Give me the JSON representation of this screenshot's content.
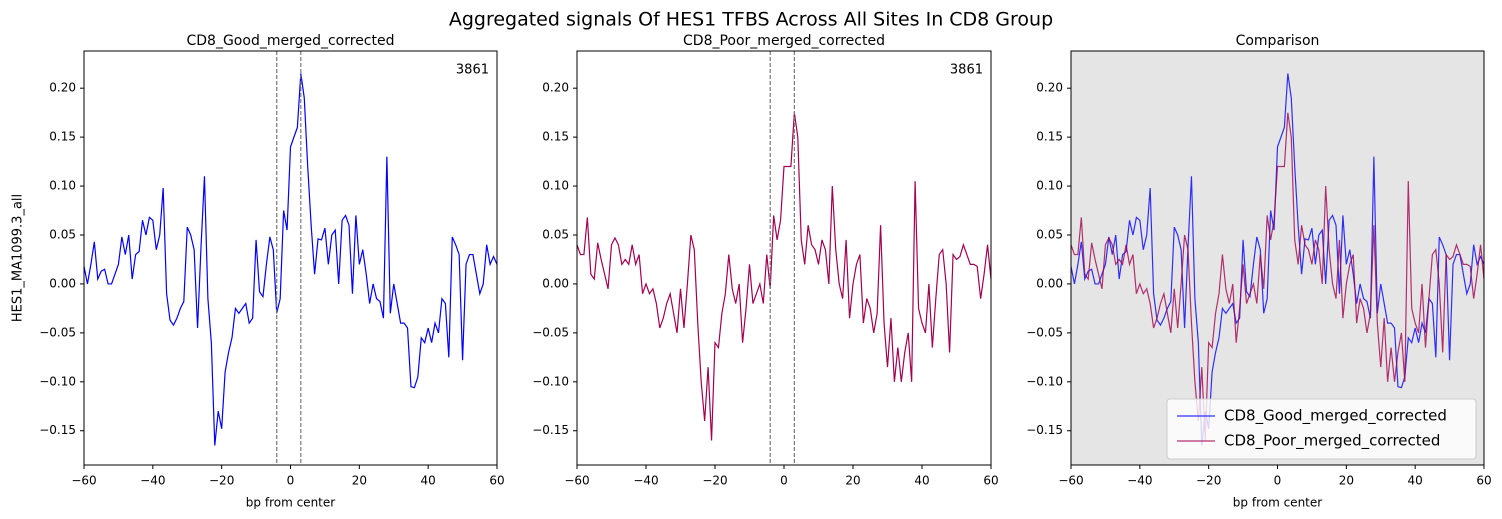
{
  "title": "Aggregated signals Of HES1 TFBS Across All Sites In CD8 Group",
  "chart_data": [
    {
      "type": "line",
      "title": "CD8_Good_merged_corrected",
      "xlabel": "bp from center",
      "ylabel": "HES1_MA1099.3_all",
      "annotation": "3861",
      "x": [
        -60,
        -59,
        -58,
        -57,
        -56,
        -55,
        -54,
        -53,
        -52,
        -51,
        -50,
        -49,
        -48,
        -47,
        -46,
        -45,
        -44,
        -43,
        -42,
        -41,
        -40,
        -39,
        -38,
        -37,
        -36,
        -35,
        -34,
        -33,
        -32,
        -31,
        -30,
        -29,
        -28,
        -27,
        -26,
        -25,
        -24,
        -23,
        -22,
        -21,
        -20,
        -19,
        -18,
        -17,
        -16,
        -15,
        -14,
        -13,
        -12,
        -11,
        -10,
        -9,
        -8,
        -7,
        -6,
        -5,
        -4,
        -3,
        -2,
        -1,
        0,
        1,
        2,
        3,
        4,
        5,
        6,
        7,
        8,
        9,
        10,
        11,
        12,
        13,
        14,
        15,
        16,
        17,
        18,
        19,
        20,
        21,
        22,
        23,
        24,
        25,
        26,
        27,
        28,
        29,
        30,
        31,
        32,
        33,
        34,
        35,
        36,
        37,
        38,
        39,
        40,
        41,
        42,
        43,
        44,
        45,
        46,
        47,
        48,
        49,
        50,
        51,
        52,
        53,
        54,
        55,
        56,
        57,
        58,
        59,
        60
      ],
      "series": [
        {
          "color": "#0000ff",
          "values": [
            0.018,
            0.0,
            0.02,
            0.043,
            0.005,
            0.013,
            0.015,
            0.0,
            0.0,
            0.01,
            0.02,
            0.048,
            0.03,
            0.05,
            0.005,
            0.03,
            0.033,
            0.065,
            0.05,
            0.068,
            0.065,
            0.035,
            0.05,
            0.098,
            -0.01,
            -0.037,
            -0.042,
            -0.035,
            -0.025,
            -0.018,
            0.058,
            0.05,
            0.035,
            -0.045,
            0.038,
            0.11,
            -0.015,
            -0.06,
            -0.165,
            -0.13,
            -0.148,
            -0.09,
            -0.07,
            -0.055,
            -0.025,
            -0.03,
            -0.025,
            -0.02,
            -0.04,
            -0.035,
            0.045,
            -0.008,
            -0.013,
            0.02,
            0.048,
            0.035,
            -0.03,
            -0.015,
            0.075,
            0.055,
            0.14,
            0.15,
            0.16,
            0.215,
            0.19,
            0.12,
            0.06,
            0.01,
            0.046,
            0.045,
            0.057,
            0.02,
            0.05,
            0.055,
            0.0,
            0.065,
            0.07,
            0.06,
            -0.01,
            0.07,
            0.02,
            0.035,
            0.01,
            -0.02,
            0.0,
            -0.015,
            -0.018,
            -0.035,
            0.13,
            -0.03,
            0.0,
            -0.02,
            -0.04,
            -0.04,
            -0.045,
            -0.105,
            -0.106,
            -0.095,
            -0.055,
            -0.06,
            -0.045,
            -0.06,
            -0.04,
            -0.05,
            -0.015,
            -0.02,
            -0.075,
            0.048,
            0.04,
            0.03,
            -0.078,
            0.02,
            0.03,
            0.03,
            0.01,
            -0.01,
            0.0,
            0.04,
            0.02,
            0.028,
            0.02
          ]
        }
      ],
      "vlines": [
        -4,
        3
      ],
      "xlim": [
        -60,
        60
      ],
      "xticks": [
        {
          "value": -60,
          "label": "−60"
        },
        {
          "value": -40,
          "label": "−40"
        },
        {
          "value": -20,
          "label": "−20"
        },
        0,
        20,
        40,
        60
      ],
      "ylim": [
        -0.185,
        0.238
      ],
      "yticks": [
        {
          "value": -0.15,
          "label": "−0.15"
        },
        {
          "value": -0.1,
          "label": "−0.10"
        },
        {
          "value": -0.05,
          "label": "−0.05"
        },
        {
          "value": 0,
          "label": "0.00"
        },
        {
          "value": 0.05,
          "label": "0.05"
        },
        {
          "value": 0.1,
          "label": "0.10"
        },
        {
          "value": 0.15,
          "label": "0.15"
        },
        {
          "value": 0.2,
          "label": "0.20"
        }
      ]
    },
    {
      "type": "line",
      "title": "CD8_Poor_merged_corrected",
      "annotation": "3861",
      "x": [
        -60,
        -59,
        -58,
        -57,
        -56,
        -55,
        -54,
        -53,
        -52,
        -51,
        -50,
        -49,
        -48,
        -47,
        -46,
        -45,
        -44,
        -43,
        -42,
        -41,
        -40,
        -39,
        -38,
        -37,
        -36,
        -35,
        -34,
        -33,
        -32,
        -31,
        -30,
        -29,
        -28,
        -27,
        -26,
        -25,
        -24,
        -23,
        -22,
        -21,
        -20,
        -19,
        -18,
        -17,
        -16,
        -15,
        -14,
        -13,
        -12,
        -11,
        -10,
        -9,
        -8,
        -7,
        -6,
        -5,
        -4,
        -3,
        -2,
        -1,
        0,
        1,
        2,
        3,
        4,
        5,
        6,
        7,
        8,
        9,
        10,
        11,
        12,
        13,
        14,
        15,
        16,
        17,
        18,
        19,
        20,
        21,
        22,
        23,
        24,
        25,
        26,
        27,
        28,
        29,
        30,
        31,
        32,
        33,
        34,
        35,
        36,
        37,
        38,
        39,
        40,
        41,
        42,
        43,
        44,
        45,
        46,
        47,
        48,
        49,
        50,
        51,
        52,
        53,
        54,
        55,
        56,
        57,
        58,
        59,
        60
      ],
      "series": [
        {
          "color": "#a3004f",
          "values": [
            0.04,
            0.03,
            0.03,
            0.068,
            0.01,
            0.005,
            0.042,
            0.025,
            0.01,
            -0.005,
            0.04,
            0.047,
            0.04,
            0.02,
            0.025,
            0.02,
            0.04,
            0.02,
            0.03,
            -0.01,
            0.0,
            -0.01,
            -0.005,
            -0.02,
            -0.045,
            -0.035,
            -0.02,
            -0.01,
            -0.03,
            -0.05,
            -0.005,
            -0.045,
            0.0,
            0.05,
            0.035,
            -0.04,
            -0.1,
            -0.14,
            -0.085,
            -0.16,
            -0.06,
            -0.065,
            -0.03,
            -0.01,
            0.03,
            -0.005,
            -0.02,
            0.0,
            -0.06,
            -0.025,
            0.02,
            -0.02,
            -0.01,
            0.0,
            -0.02,
            0.03,
            -0.005,
            0.07,
            0.045,
            0.065,
            0.12,
            0.12,
            0.12,
            0.175,
            0.15,
            0.045,
            0.02,
            0.06,
            0.04,
            0.035,
            0.02,
            0.045,
            0.035,
            0.0,
            0.1,
            0.035,
            0.0,
            -0.015,
            0.045,
            -0.035,
            0.0,
            0.02,
            0.03,
            -0.04,
            -0.015,
            -0.025,
            -0.05,
            -0.03,
            0.06,
            -0.04,
            -0.085,
            -0.035,
            -0.1,
            -0.065,
            -0.1,
            -0.07,
            -0.05,
            -0.1,
            0.105,
            -0.025,
            -0.04,
            -0.05,
            0.0,
            -0.065,
            -0.015,
            0.03,
            0.035,
            0.0,
            -0.07,
            0.03,
            0.025,
            0.028,
            0.04,
            0.03,
            0.02,
            0.02,
            0.018,
            -0.015,
            0.01,
            0.04,
            0.005
          ]
        }
      ],
      "vlines": [
        -4,
        3
      ],
      "xlim": [
        -60,
        60
      ],
      "xticks": [
        {
          "value": -60,
          "label": "−60"
        },
        {
          "value": -40,
          "label": "−40"
        },
        {
          "value": -20,
          "label": "−20"
        },
        0,
        20,
        40,
        60
      ],
      "ylim": [
        -0.185,
        0.238
      ],
      "yticks": [
        {
          "value": -0.15,
          "label": "−0.15"
        },
        {
          "value": -0.1,
          "label": "−0.10"
        },
        {
          "value": -0.05,
          "label": "−0.05"
        },
        {
          "value": 0,
          "label": "0.00"
        },
        {
          "value": 0.05,
          "label": "0.05"
        },
        {
          "value": 0.1,
          "label": "0.10"
        },
        {
          "value": 0.15,
          "label": "0.15"
        },
        {
          "value": 0.2,
          "label": "0.20"
        }
      ]
    },
    {
      "type": "line",
      "title": "Comparison",
      "xlabel": "bp from center",
      "facecolor": "#e5e5e5",
      "alpha": 0.8,
      "legend": "lower right",
      "x": [
        -60,
        -59,
        -58,
        -57,
        -56,
        -55,
        -54,
        -53,
        -52,
        -51,
        -50,
        -49,
        -48,
        -47,
        -46,
        -45,
        -44,
        -43,
        -42,
        -41,
        -40,
        -39,
        -38,
        -37,
        -36,
        -35,
        -34,
        -33,
        -32,
        -31,
        -30,
        -29,
        -28,
        -27,
        -26,
        -25,
        -24,
        -23,
        -22,
        -21,
        -20,
        -19,
        -18,
        -17,
        -16,
        -15,
        -14,
        -13,
        -12,
        -11,
        -10,
        -9,
        -8,
        -7,
        -6,
        -5,
        -4,
        -3,
        -2,
        -1,
        0,
        1,
        2,
        3,
        4,
        5,
        6,
        7,
        8,
        9,
        10,
        11,
        12,
        13,
        14,
        15,
        16,
        17,
        18,
        19,
        20,
        21,
        22,
        23,
        24,
        25,
        26,
        27,
        28,
        29,
        30,
        31,
        32,
        33,
        34,
        35,
        36,
        37,
        38,
        39,
        40,
        41,
        42,
        43,
        44,
        45,
        46,
        47,
        48,
        49,
        50,
        51,
        52,
        53,
        54,
        55,
        56,
        57,
        58,
        59,
        60
      ],
      "series": [
        {
          "name": "CD8_Good_merged_corrected",
          "color": "#0000ff",
          "values": [
            0.018,
            0.0,
            0.02,
            0.043,
            0.005,
            0.013,
            0.015,
            0.0,
            0.0,
            0.01,
            0.02,
            0.048,
            0.03,
            0.05,
            0.005,
            0.03,
            0.033,
            0.065,
            0.05,
            0.068,
            0.065,
            0.035,
            0.05,
            0.098,
            -0.01,
            -0.037,
            -0.042,
            -0.035,
            -0.025,
            -0.018,
            0.058,
            0.05,
            0.035,
            -0.045,
            0.038,
            0.11,
            -0.015,
            -0.06,
            -0.165,
            -0.13,
            -0.148,
            -0.09,
            -0.07,
            -0.055,
            -0.025,
            -0.03,
            -0.025,
            -0.02,
            -0.04,
            -0.035,
            0.045,
            -0.008,
            -0.013,
            0.02,
            0.048,
            0.035,
            -0.03,
            -0.015,
            0.075,
            0.055,
            0.14,
            0.15,
            0.16,
            0.215,
            0.19,
            0.12,
            0.06,
            0.01,
            0.046,
            0.045,
            0.057,
            0.02,
            0.05,
            0.055,
            0.0,
            0.065,
            0.07,
            0.06,
            -0.01,
            0.07,
            0.02,
            0.035,
            0.01,
            -0.02,
            0.0,
            -0.015,
            -0.018,
            -0.035,
            0.13,
            -0.03,
            0.0,
            -0.02,
            -0.04,
            -0.04,
            -0.045,
            -0.105,
            -0.106,
            -0.095,
            -0.055,
            -0.06,
            -0.045,
            -0.06,
            -0.04,
            -0.05,
            -0.015,
            -0.02,
            -0.075,
            0.048,
            0.04,
            0.03,
            -0.078,
            0.02,
            0.03,
            0.03,
            0.01,
            -0.01,
            0.0,
            0.04,
            0.02,
            0.028,
            0.02
          ]
        },
        {
          "name": "CD8_Poor_merged_corrected",
          "color": "#a3004f",
          "values": [
            0.04,
            0.03,
            0.03,
            0.068,
            0.01,
            0.005,
            0.042,
            0.025,
            0.01,
            -0.005,
            0.04,
            0.047,
            0.04,
            0.02,
            0.025,
            0.02,
            0.04,
            0.02,
            0.03,
            -0.01,
            0.0,
            -0.01,
            -0.005,
            -0.02,
            -0.045,
            -0.035,
            -0.02,
            -0.01,
            -0.03,
            -0.05,
            -0.005,
            -0.045,
            0.0,
            0.05,
            0.035,
            -0.04,
            -0.1,
            -0.14,
            -0.085,
            -0.16,
            -0.06,
            -0.065,
            -0.03,
            -0.01,
            0.03,
            -0.005,
            -0.02,
            0.0,
            -0.06,
            -0.025,
            0.02,
            -0.02,
            -0.01,
            0.0,
            -0.02,
            0.03,
            -0.005,
            0.07,
            0.045,
            0.065,
            0.12,
            0.12,
            0.12,
            0.175,
            0.15,
            0.045,
            0.02,
            0.06,
            0.04,
            0.035,
            0.02,
            0.045,
            0.035,
            0.0,
            0.1,
            0.035,
            0.0,
            -0.015,
            0.045,
            -0.035,
            0.0,
            0.02,
            0.03,
            -0.04,
            -0.015,
            -0.025,
            -0.05,
            -0.03,
            0.06,
            -0.04,
            -0.085,
            -0.035,
            -0.1,
            -0.065,
            -0.1,
            -0.07,
            -0.05,
            -0.1,
            0.105,
            -0.025,
            -0.04,
            -0.05,
            0.0,
            -0.065,
            -0.015,
            0.03,
            0.035,
            0.0,
            -0.07,
            0.03,
            0.025,
            0.028,
            0.04,
            0.03,
            0.02,
            0.02,
            0.018,
            -0.015,
            0.01,
            0.04,
            0.005
          ]
        }
      ],
      "xlim": [
        -60,
        60
      ],
      "xticks": [
        {
          "value": -60,
          "label": "−60"
        },
        {
          "value": -40,
          "label": "−40"
        },
        {
          "value": -20,
          "label": "−20"
        },
        0,
        20,
        40,
        60
      ],
      "ylim": [
        -0.185,
        0.238
      ],
      "yticks": [
        {
          "value": -0.15,
          "label": "−0.15"
        },
        {
          "value": -0.1,
          "label": "−0.10"
        },
        {
          "value": -0.05,
          "label": "−0.05"
        },
        {
          "value": 0,
          "label": "0.00"
        },
        {
          "value": 0.05,
          "label": "0.05"
        },
        {
          "value": 0.1,
          "label": "0.10"
        },
        {
          "value": 0.15,
          "label": "0.15"
        },
        {
          "value": 0.2,
          "label": "0.20"
        }
      ]
    }
  ]
}
